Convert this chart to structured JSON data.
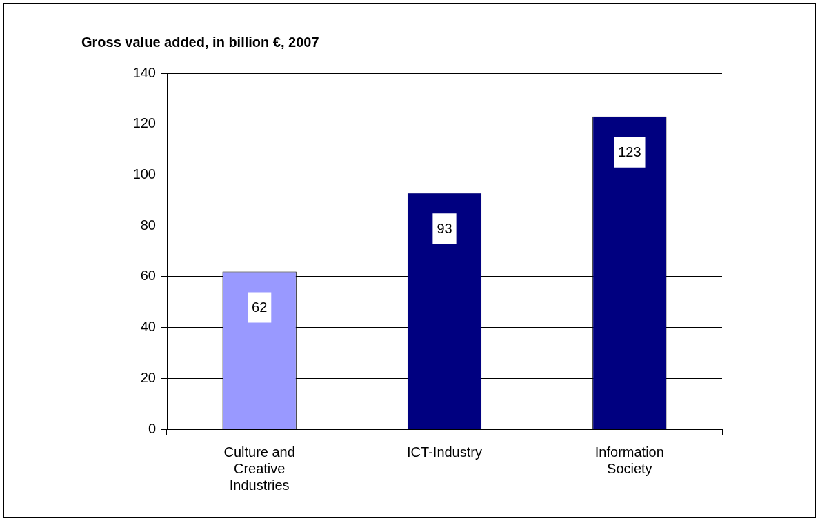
{
  "chart_data": {
    "type": "bar",
    "title": "Gross value added, in billion €, 2007",
    "categories": [
      "Culture and Creative Industries",
      "ICT-Industry",
      "Information Society"
    ],
    "values": [
      62,
      93,
      123
    ],
    "colors": [
      "#9999ff",
      "#000080",
      "#000080"
    ],
    "ylim": [
      0,
      140
    ],
    "yticks": [
      0,
      20,
      40,
      60,
      80,
      100,
      120,
      140
    ],
    "grid": "y",
    "legend": false,
    "data_labels": true
  }
}
